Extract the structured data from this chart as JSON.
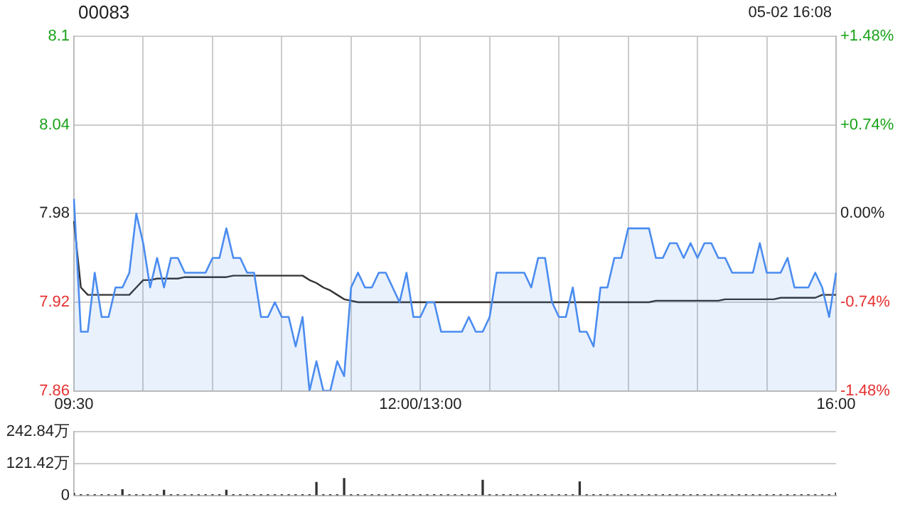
{
  "chart_data": [
    {
      "type": "area",
      "title": "00083",
      "subtitle": "05-02 16:08",
      "categories": [
        "09:30",
        null,
        null,
        null,
        null,
        null,
        null,
        null,
        null,
        null,
        null,
        null,
        null,
        null,
        null,
        null,
        null,
        null,
        null,
        null,
        null,
        null,
        null,
        null,
        null,
        null,
        null,
        null,
        null,
        null,
        null,
        null,
        null,
        null,
        null,
        null,
        null,
        null,
        null,
        null,
        null,
        null,
        null,
        null,
        null,
        null,
        null,
        null,
        null,
        null,
        "12:00/13:00",
        null,
        null,
        null,
        null,
        null,
        null,
        null,
        null,
        null,
        null,
        null,
        null,
        null,
        null,
        null,
        null,
        null,
        null,
        null,
        null,
        null,
        null,
        null,
        null,
        null,
        null,
        null,
        null,
        null,
        null,
        null,
        null,
        null,
        null,
        null,
        null,
        null,
        null,
        null,
        null,
        null,
        null,
        null,
        null,
        null,
        null,
        null,
        null,
        null,
        null,
        null,
        null,
        null,
        null,
        null,
        null,
        null,
        null,
        null,
        "16:00"
      ],
      "ylim": [
        7.86,
        8.1
      ],
      "yticks": [
        7.86,
        7.92,
        7.98,
        8.04,
        8.1
      ],
      "y2lim": [
        -1.48,
        1.48
      ],
      "y2ticks": [
        {
          "value": -1.48,
          "label": "-1.48%"
        },
        {
          "value": -0.74,
          "label": "-0.74%"
        },
        {
          "value": 0,
          "label": "0.00%"
        },
        {
          "value": 0.74,
          "label": "+0.74%"
        },
        {
          "value": 1.48,
          "label": "+1.48%"
        }
      ],
      "grid": true,
      "legend": false,
      "marker": "none",
      "line_style": "solid",
      "series": [
        {
          "type": "area",
          "color": "#4a8cf0",
          "values": [
            7.99,
            7.9,
            7.9,
            7.94,
            7.91,
            7.91,
            7.93,
            7.93,
            7.94,
            7.98,
            7.96,
            7.93,
            7.95,
            7.93,
            7.95,
            7.95,
            7.94,
            7.94,
            7.94,
            7.94,
            7.95,
            7.95,
            7.97,
            7.95,
            7.95,
            7.94,
            7.94,
            7.91,
            7.91,
            7.92,
            7.91,
            7.91,
            7.89,
            7.91,
            7.86,
            7.88,
            7.86,
            7.86,
            7.88,
            7.87,
            7.93,
            7.94,
            7.93,
            7.93,
            7.94,
            7.94,
            7.93,
            7.92,
            7.94,
            7.91,
            7.91,
            7.92,
            7.92,
            7.9,
            7.9,
            7.9,
            7.9,
            7.91,
            7.9,
            7.9,
            7.91,
            7.94,
            7.94,
            7.94,
            7.94,
            7.94,
            7.93,
            7.95,
            7.95,
            7.92,
            7.91,
            7.91,
            7.93,
            7.9,
            7.9,
            7.89,
            7.93,
            7.93,
            7.95,
            7.95,
            7.97,
            7.97,
            7.97,
            7.97,
            7.95,
            7.95,
            7.96,
            7.96,
            7.95,
            7.96,
            7.95,
            7.96,
            7.96,
            7.95,
            7.95,
            7.94,
            7.94,
            7.94,
            7.94,
            7.96,
            7.94,
            7.94,
            7.94,
            7.95,
            7.93,
            7.93,
            7.93,
            7.94,
            7.93,
            7.91,
            7.94
          ]
        },
        {
          "type": "line",
          "color": "#333333",
          "values": [
            7.975,
            7.93,
            7.925,
            7.925,
            7.925,
            7.925,
            7.925,
            7.925,
            7.925,
            7.93,
            7.935,
            7.935,
            7.936,
            7.936,
            7.936,
            7.936,
            7.937,
            7.937,
            7.937,
            7.937,
            7.937,
            7.937,
            7.937,
            7.938,
            7.938,
            7.938,
            7.938,
            7.938,
            7.938,
            7.938,
            7.938,
            7.938,
            7.938,
            7.938,
            7.935,
            7.933,
            7.93,
            7.928,
            7.925,
            7.922,
            7.921,
            7.92,
            7.92,
            7.92,
            7.92,
            7.92,
            7.92,
            7.92,
            7.92,
            7.92,
            7.92,
            7.92,
            7.92,
            7.92,
            7.92,
            7.92,
            7.92,
            7.92,
            7.92,
            7.92,
            7.92,
            7.92,
            7.92,
            7.92,
            7.92,
            7.92,
            7.92,
            7.92,
            7.92,
            7.92,
            7.92,
            7.92,
            7.92,
            7.92,
            7.92,
            7.92,
            7.92,
            7.92,
            7.92,
            7.92,
            7.92,
            7.92,
            7.92,
            7.92,
            7.921,
            7.921,
            7.921,
            7.921,
            7.921,
            7.921,
            7.921,
            7.921,
            7.921,
            7.921,
            7.922,
            7.922,
            7.922,
            7.922,
            7.922,
            7.922,
            7.922,
            7.922,
            7.923,
            7.923,
            7.923,
            7.923,
            7.923,
            7.923,
            7.925,
            7.925,
            7.925
          ]
        }
      ]
    },
    {
      "type": "bar",
      "tick_labels": "y",
      "grid": "y",
      "legend": false,
      "categories": [
        null,
        null,
        null,
        null,
        null,
        null,
        null,
        null,
        null,
        null,
        null,
        null,
        null,
        null,
        null,
        null,
        null,
        null,
        null,
        null,
        null,
        null,
        null,
        null,
        null,
        null,
        null,
        null,
        null,
        null,
        null,
        null,
        null,
        null,
        null,
        null,
        null,
        null,
        null,
        null,
        null,
        null,
        null,
        null,
        null,
        null,
        null,
        null,
        null,
        null,
        null,
        null,
        null,
        null,
        null,
        null,
        null,
        null,
        null,
        null,
        null,
        null,
        null,
        null,
        null,
        null,
        null,
        null,
        null,
        null,
        null,
        null,
        null,
        null,
        null,
        null,
        null,
        null,
        null,
        null,
        null,
        null,
        null,
        null,
        null,
        null,
        null,
        null,
        null,
        null,
        null,
        null,
        null,
        null,
        null,
        null,
        null,
        null,
        null,
        null,
        null,
        null,
        null,
        null,
        null,
        null,
        null,
        null,
        null,
        null,
        null
      ],
      "ylim": [
        0,
        242.84
      ],
      "yticks": [
        0,
        {
          "value": 121.42,
          "label": "121.42万"
        },
        {
          "value": 242.84,
          "label": "242.84万"
        }
      ],
      "series": [
        {
          "color": "#333333",
          "values": [
            8,
            3,
            3,
            3,
            3,
            3,
            3,
            22,
            3,
            3,
            3,
            3,
            3,
            20,
            3,
            3,
            3,
            3,
            3,
            3,
            3,
            3,
            20,
            3,
            3,
            3,
            3,
            3,
            3,
            3,
            3,
            3,
            3,
            3,
            3,
            50,
            3,
            3,
            3,
            65,
            3,
            3,
            3,
            3,
            3,
            3,
            3,
            3,
            3,
            3,
            3,
            3,
            3,
            3,
            3,
            3,
            3,
            3,
            3,
            58,
            3,
            3,
            3,
            3,
            3,
            3,
            3,
            3,
            3,
            3,
            3,
            3,
            3,
            52,
            3,
            3,
            3,
            3,
            3,
            3,
            3,
            3,
            3,
            3,
            3,
            3,
            3,
            3,
            3,
            3,
            3,
            3,
            3,
            3,
            3,
            3,
            3,
            3,
            3,
            3,
            3,
            3,
            3,
            3,
            3,
            3,
            3,
            3,
            3,
            3,
            10
          ]
        }
      ]
    }
  ]
}
